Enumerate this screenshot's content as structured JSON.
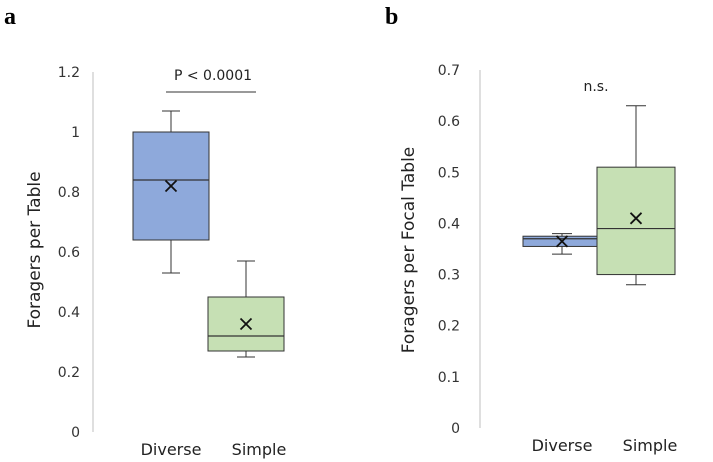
{
  "colors": {
    "diverse": "#8EA9DB",
    "simple": "#C6E0B4",
    "stroke": "#333333"
  },
  "chart_data": [
    {
      "panel": "a",
      "type": "box",
      "ylabel": "Foragers per Table",
      "ylim": [
        0,
        1.2
      ],
      "yticks": [
        "0",
        "0.2",
        "0.4",
        "0.6",
        "0.8",
        "1",
        "1.2"
      ],
      "categories": [
        "Diverse",
        "Simple"
      ],
      "annotation": "P < 0.0001",
      "boxes": [
        {
          "name": "Diverse",
          "min": 0.53,
          "q1": 0.64,
          "median": 0.84,
          "q3": 1.0,
          "max": 1.07,
          "mean": 0.82
        },
        {
          "name": "Simple",
          "min": 0.25,
          "q1": 0.27,
          "median": 0.32,
          "q3": 0.45,
          "max": 0.57,
          "mean": 0.36
        }
      ]
    },
    {
      "panel": "b",
      "type": "box",
      "ylabel": "Foragers per Focal Table",
      "ylim": [
        0,
        0.7
      ],
      "yticks": [
        "0",
        "0.1",
        "0.2",
        "0.3",
        "0.4",
        "0.5",
        "0.6",
        "0.7"
      ],
      "categories": [
        "Diverse",
        "Simple"
      ],
      "annotation": "n.s.",
      "boxes": [
        {
          "name": "Diverse",
          "min": 0.34,
          "q1": 0.355,
          "median": 0.37,
          "q3": 0.375,
          "max": 0.38,
          "mean": 0.365
        },
        {
          "name": "Simple",
          "min": 0.28,
          "q1": 0.3,
          "median": 0.39,
          "q3": 0.51,
          "max": 0.63,
          "mean": 0.41
        }
      ]
    }
  ]
}
